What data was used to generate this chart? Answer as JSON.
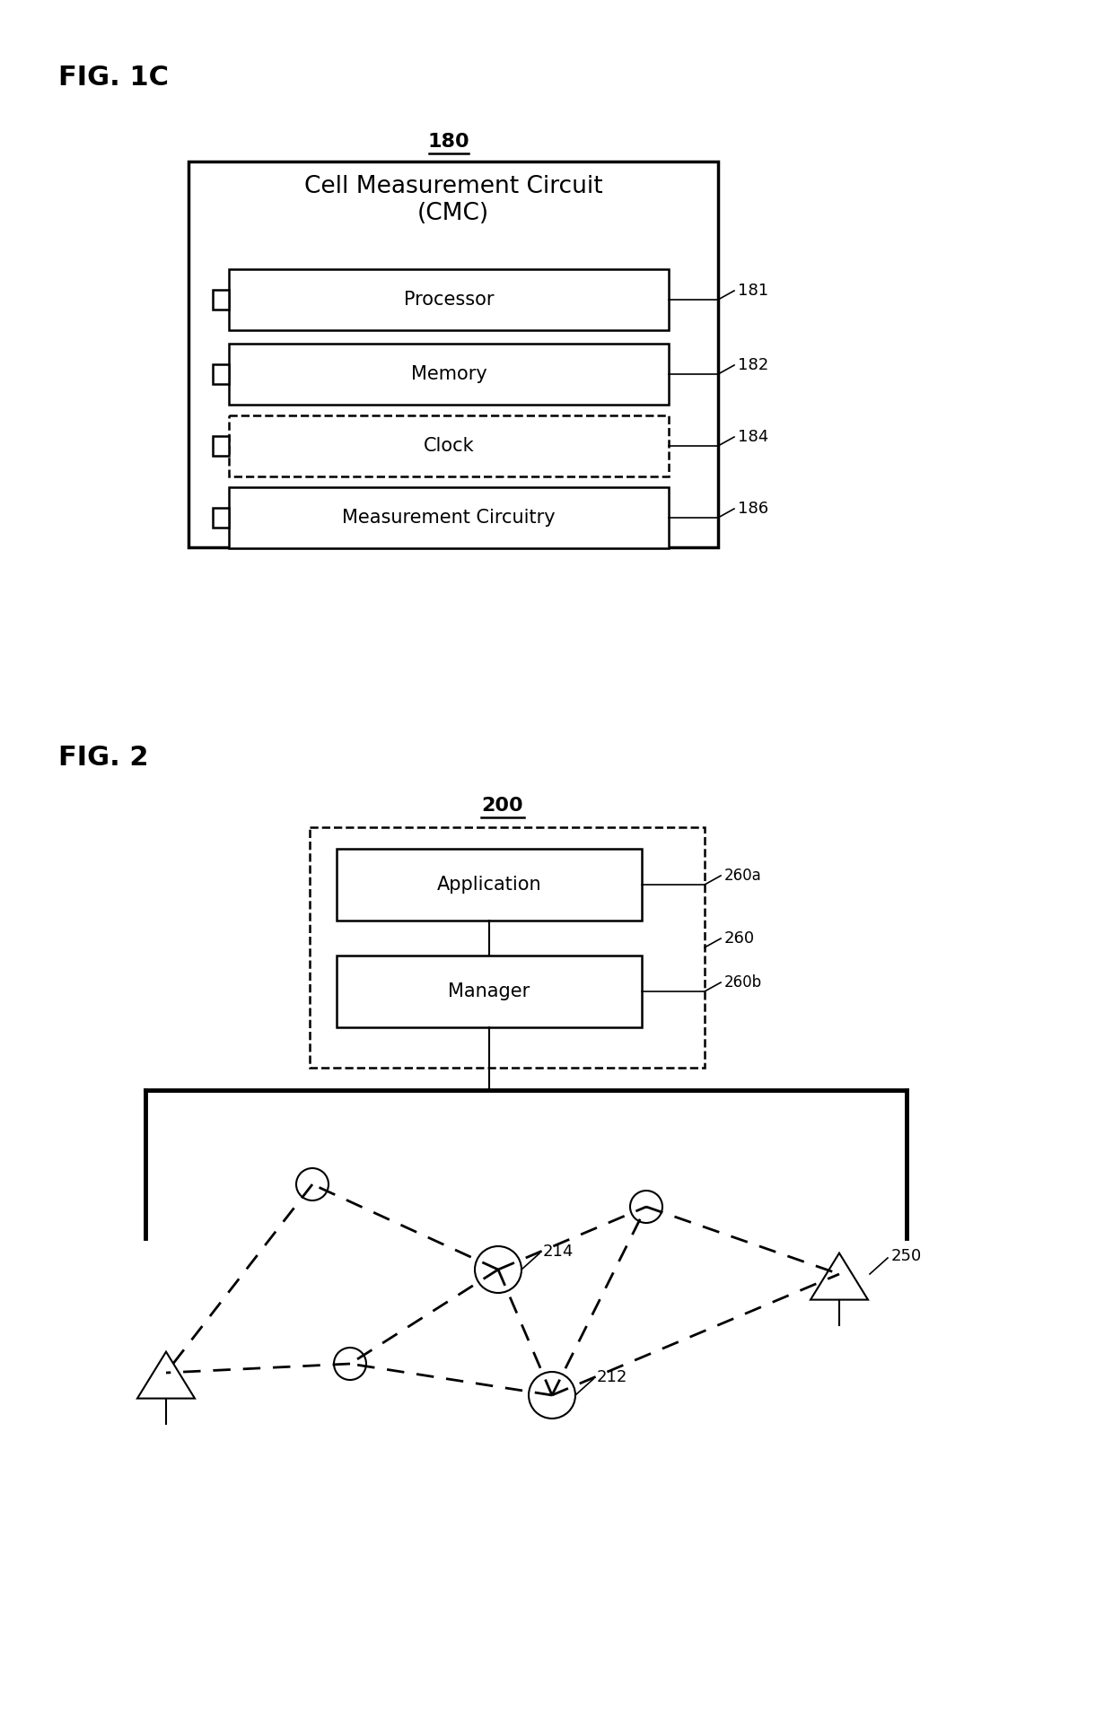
{
  "bg_color": "#ffffff",
  "fig_label_1c": "FIG. 1C",
  "fig_label_2": "FIG. 2",
  "label_180": "180",
  "label_200": "200",
  "cmc_title": "Cell Measurement Circuit\n(CMC)",
  "ref_260": "260",
  "ref_260a": "260a",
  "ref_260b": "260b",
  "ref_214": "214",
  "ref_212": "212",
  "ref_250": "250",
  "ref_181": "181",
  "ref_182": "182",
  "ref_184": "184",
  "ref_186": "186"
}
